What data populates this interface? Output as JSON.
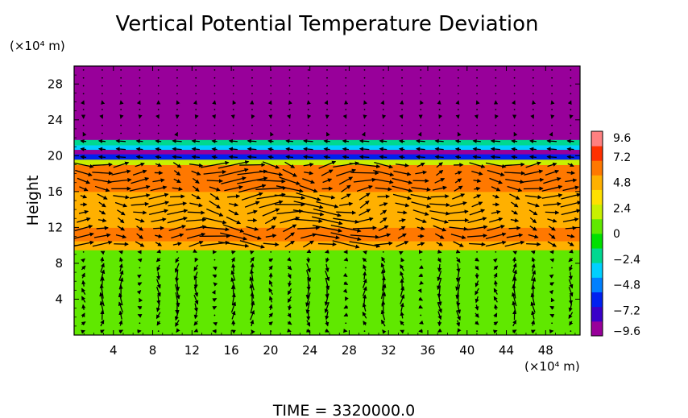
{
  "chart_data": {
    "type": "heatmap",
    "title": "Vertical Potential Temperature Deviation",
    "ylabel": "Height",
    "y_unit": "(×10⁴ m)",
    "x_unit": "(×10⁴ m)",
    "xlim": [
      0,
      51.5
    ],
    "ylim": [
      0,
      30
    ],
    "x_ticks": [
      4,
      8,
      12,
      16,
      20,
      24,
      28,
      32,
      36,
      40,
      44,
      48
    ],
    "y_ticks": [
      4,
      8,
      12,
      16,
      20,
      24,
      28
    ],
    "colorbar": {
      "min": -9.6,
      "max": 9.6,
      "ticks": [
        9.6,
        7.2,
        4.8,
        2.4,
        0,
        -2.4,
        -4.8,
        -7.2,
        -9.6
      ],
      "tick_labels": [
        "9.6",
        "7.2",
        "4.8",
        "2.4",
        "0",
        "−2.4",
        "−4.8",
        "−7.2",
        "−9.6"
      ],
      "colors": [
        "#98009a",
        "#3a00c8",
        "#0020f0",
        "#0080ff",
        "#00d0ff",
        "#00d890",
        "#00e000",
        "#60e800",
        "#c8f000",
        "#ffe000",
        "#ffb000",
        "#ff7800",
        "#ff3000",
        "#ff8080"
      ]
    },
    "bands": [
      {
        "y0": 0,
        "y1": 9.5,
        "value": 0.3
      },
      {
        "y0": 9.5,
        "y1": 10.5,
        "value": 5.4
      },
      {
        "y0": 10.5,
        "y1": 12,
        "value": 6.0
      },
      {
        "y0": 12,
        "y1": 16,
        "value": 4.8
      },
      {
        "y0": 16,
        "y1": 19,
        "value": 6.6
      },
      {
        "y0": 19,
        "y1": 19.6,
        "value": 2.0
      },
      {
        "y0": 19.6,
        "y1": 20.2,
        "value": -5.5
      },
      {
        "y0": 20.2,
        "y1": 20.7,
        "value": -8.5
      },
      {
        "y0": 20.7,
        "y1": 21.2,
        "value": -3.5
      },
      {
        "y0": 21.2,
        "y1": 21.8,
        "value": -2.6
      },
      {
        "y0": 21.8,
        "y1": 30,
        "value": -9.6
      }
    ]
  },
  "footer": "TIME = 3320000.0"
}
